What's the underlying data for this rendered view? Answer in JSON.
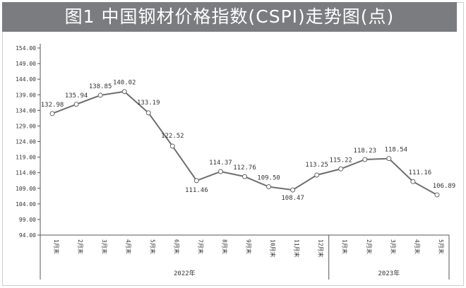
{
  "chart_data": {
    "type": "line",
    "title": "图1 中国钢材价格指数(CSPI)走势图(点)",
    "categories": [
      "1月末",
      "2月末",
      "3月末",
      "4月末",
      "5月末",
      "6月末",
      "7月末",
      "8月末",
      "9月末",
      "10月末",
      "11月末",
      "12月末",
      "1月末",
      "2月末",
      "3月末",
      "4月末",
      "5月末"
    ],
    "groups": [
      {
        "label": "2022年",
        "count": 12
      },
      {
        "label": "2023年",
        "count": 5
      }
    ],
    "series": [
      {
        "name": "CSPI",
        "values": [
          132.98,
          135.94,
          138.85,
          140.02,
          133.19,
          122.52,
          111.46,
          114.37,
          112.76,
          109.5,
          108.47,
          113.25,
          115.22,
          118.23,
          118.54,
          111.16,
          106.89
        ]
      }
    ],
    "value_labels": [
      "132.98",
      "135.94",
      "138.85",
      "140.02",
      "133.19",
      "122.52",
      "111.46",
      "114.37",
      "112.76",
      "109.50",
      "108.47",
      "113.25",
      "115.22",
      "118.23",
      "118.54",
      "111.16",
      "106.89"
    ],
    "yticks": [
      "94.00",
      "99.00",
      "104.00",
      "109.00",
      "114.00",
      "119.00",
      "124.00",
      "129.00",
      "134.00",
      "139.00",
      "144.00",
      "149.00",
      "154.00"
    ],
    "ylim": [
      94,
      154
    ],
    "xlabel": "",
    "ylabel": "",
    "grid": false,
    "line_color": "#6e6e6e"
  }
}
